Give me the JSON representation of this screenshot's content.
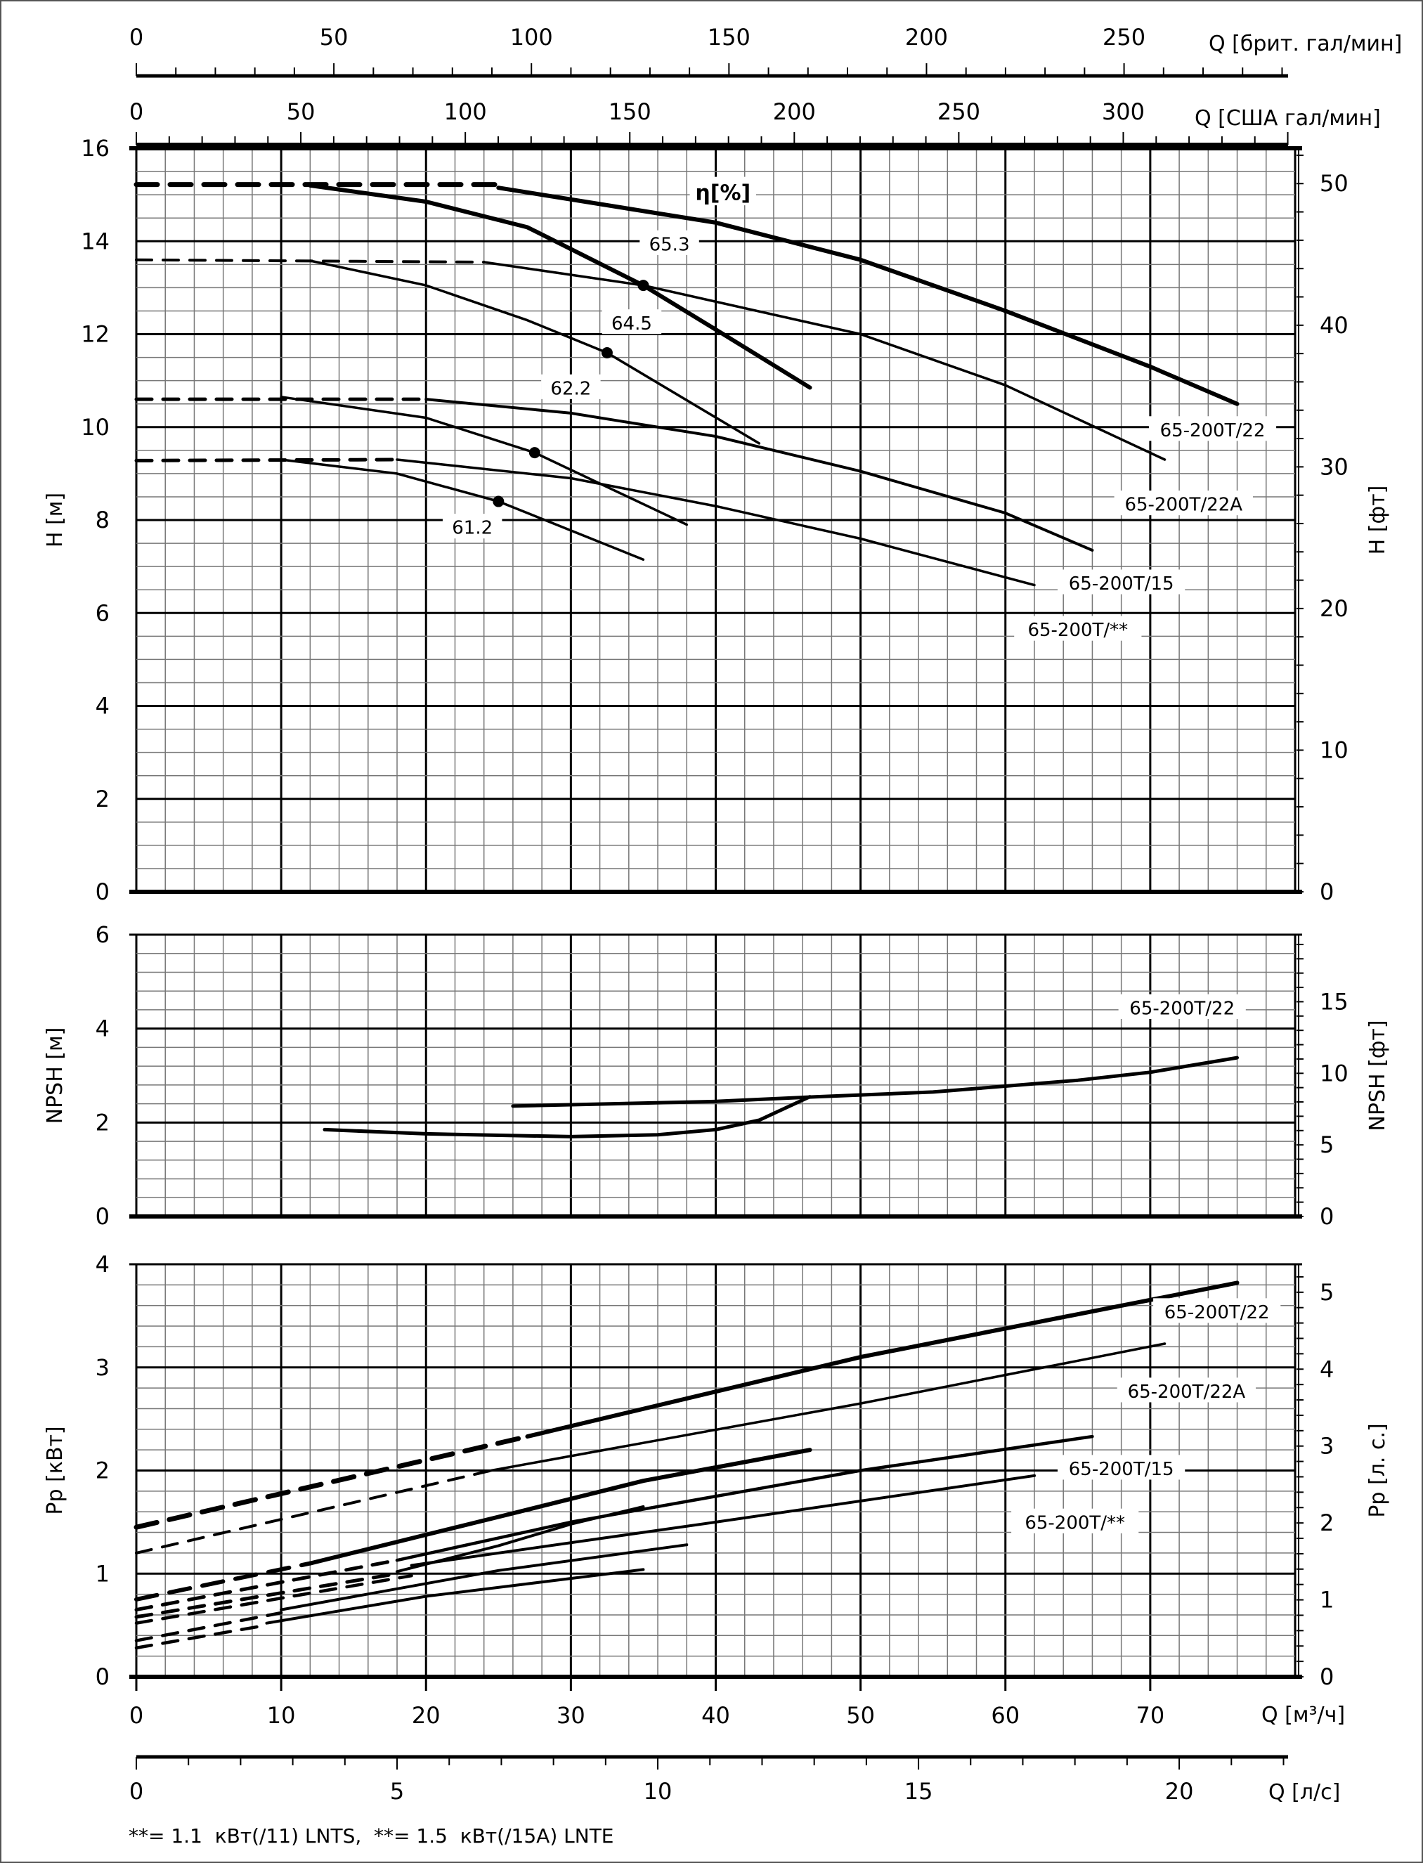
{
  "chart_data": {
    "type": "line",
    "x_range": [
      0,
      80
    ],
    "xlabel": "Q [м³/ч]",
    "x_ticks": [
      0,
      10,
      20,
      30,
      40,
      50,
      60,
      70
    ],
    "secondary_x_axes": [
      {
        "label": "Q [брит. гал/мин]",
        "factor": 3.6662,
        "ticks": [
          0,
          50,
          100,
          150,
          200,
          250
        ],
        "position": "top"
      },
      {
        "label": "Q [США гал/мин]",
        "factor": 4.4029,
        "ticks": [
          0,
          50,
          100,
          150,
          200,
          250,
          300
        ],
        "position": "top"
      },
      {
        "label": "Q [л/с]",
        "factor": 0.27778,
        "ticks": [
          0,
          5,
          10,
          15,
          20
        ],
        "position": "bottom"
      }
    ],
    "panels": [
      {
        "id": "H",
        "ylabel": "H [м]",
        "ylim": [
          0,
          16
        ],
        "y_ticks": [
          0,
          2,
          4,
          6,
          8,
          10,
          12,
          14,
          16
        ],
        "y2label": "H [фт]",
        "y2factor": 3.2808,
        "y2_ticks": [
          0,
          10,
          20,
          30,
          40,
          50
        ],
        "series": [
          {
            "name": "65-200T/22 dashed",
            "width": 7,
            "dashed": true,
            "points": [
              [
                0,
                15.22
              ],
              [
                25,
                15.22
              ]
            ]
          },
          {
            "name": "65-200T/22",
            "width": 6,
            "points": [
              [
                25,
                15.15
              ],
              [
                40,
                14.4
              ],
              [
                50,
                13.6
              ],
              [
                60,
                12.5
              ],
              [
                70,
                11.3
              ],
              [
                76,
                10.5
              ]
            ]
          },
          {
            "name": "η 65-200T/22",
            "width": 6,
            "points": [
              [
                12,
                15.2
              ],
              [
                20,
                14.85
              ],
              [
                27,
                14.3
              ],
              [
                35,
                13.05
              ],
              [
                40,
                12.1
              ],
              [
                46.5,
                10.85
              ]
            ]
          },
          {
            "name": "65-200T/22A dashed",
            "width": 4,
            "dashed": true,
            "points": [
              [
                0,
                13.6
              ],
              [
                24,
                13.55
              ]
            ]
          },
          {
            "name": "65-200T/22A",
            "width": 3.5,
            "points": [
              [
                24,
                13.55
              ],
              [
                35,
                13.05
              ],
              [
                50,
                12.0
              ],
              [
                60,
                10.9
              ],
              [
                71,
                9.3
              ]
            ]
          },
          {
            "name": "η 65-200T/22A",
            "width": 3.5,
            "points": [
              [
                12,
                13.58
              ],
              [
                20,
                13.05
              ],
              [
                27,
                12.3
              ],
              [
                32.5,
                11.6
              ],
              [
                43,
                9.65
              ]
            ]
          },
          {
            "name": "65-200T/15 dashed",
            "width": 5,
            "dashed": true,
            "points": [
              [
                0,
                10.6
              ],
              [
                20,
                10.6
              ]
            ]
          },
          {
            "name": "65-200T/15",
            "width": 4,
            "points": [
              [
                20,
                10.6
              ],
              [
                30,
                10.3
              ],
              [
                40,
                9.8
              ],
              [
                50,
                9.05
              ],
              [
                60,
                8.15
              ],
              [
                66,
                7.35
              ]
            ]
          },
          {
            "name": "η 65-200T/15",
            "width": 3.5,
            "points": [
              [
                10,
                10.65
              ],
              [
                20,
                10.2
              ],
              [
                27.5,
                9.45
              ],
              [
                38,
                7.9
              ]
            ]
          },
          {
            "name": "65-200T/** dashed",
            "width": 5,
            "dashed": true,
            "points": [
              [
                0,
                9.28
              ],
              [
                18,
                9.3
              ]
            ]
          },
          {
            "name": "65-200T/**",
            "width": 3.5,
            "points": [
              [
                18,
                9.3
              ],
              [
                30,
                8.9
              ],
              [
                40,
                8.3
              ],
              [
                50,
                7.6
              ],
              [
                62,
                6.6
              ]
            ]
          },
          {
            "name": "η 65-200T/**",
            "width": 3.5,
            "points": [
              [
                10,
                9.3
              ],
              [
                18,
                9.0
              ],
              [
                25,
                8.4
              ],
              [
                35,
                7.15
              ]
            ]
          }
        ],
        "markers": [
          [
            35,
            13.05
          ],
          [
            32.5,
            11.6
          ],
          [
            27.5,
            9.45
          ],
          [
            25,
            8.4
          ]
        ],
        "annotations": [
          {
            "text": "η[%]",
            "x": 40.5,
            "y": 15.0,
            "bold": true
          },
          {
            "text": "65.3",
            "x": 36.8,
            "y": 13.9
          },
          {
            "text": "64.5",
            "x": 34.2,
            "y": 12.2
          },
          {
            "text": "62.2",
            "x": 30.0,
            "y": 10.8
          },
          {
            "text": "61.2",
            "x": 23.2,
            "y": 7.8
          },
          {
            "text": "65-200T/22",
            "x": 74.3,
            "y": 9.9
          },
          {
            "text": "65-200T/22A",
            "x": 72.3,
            "y": 8.3
          },
          {
            "text": "65-200T/15",
            "x": 68.0,
            "y": 6.6
          },
          {
            "text": "65-200T/**",
            "x": 65.0,
            "y": 5.6
          }
        ]
      },
      {
        "id": "NPSH",
        "ylabel": "NPSH [м]",
        "ylim": [
          0,
          6
        ],
        "y_ticks": [
          0,
          2,
          4,
          6
        ],
        "y2label": "NPSH [фт]",
        "y2factor": 3.2808,
        "y2_ticks": [
          0,
          5,
          10,
          15
        ],
        "series": [
          {
            "name": "NPSH low",
            "width": 5,
            "points": [
              [
                13,
                1.85
              ],
              [
                20,
                1.76
              ],
              [
                30,
                1.7
              ],
              [
                36,
                1.74
              ],
              [
                40,
                1.85
              ],
              [
                43,
                2.05
              ],
              [
                46.5,
                2.55
              ]
            ]
          },
          {
            "name": "NPSH 65-200T/22",
            "width": 5,
            "points": [
              [
                26,
                2.35
              ],
              [
                40,
                2.45
              ],
              [
                47,
                2.55
              ],
              [
                55,
                2.65
              ],
              [
                65,
                2.9
              ],
              [
                70,
                3.07
              ],
              [
                76,
                3.38
              ]
            ]
          }
        ],
        "markers": [],
        "annotations": [
          {
            "text": "65-200T/22",
            "x": 72.2,
            "y": 4.4
          }
        ]
      },
      {
        "id": "Pp",
        "ylabel": "Pp [кВт]",
        "ylim": [
          0,
          4
        ],
        "y_ticks": [
          0,
          1,
          2,
          3,
          4
        ],
        "y2label": "Pp [л. с.]",
        "y2factor": 1.341,
        "y2_ticks": [
          0,
          1,
          2,
          3,
          4,
          5
        ],
        "series": [
          {
            "name": "Pp 65-200T/22 dashed",
            "width": 7,
            "dashed": true,
            "points": [
              [
                0,
                1.45
              ],
              [
                27,
                2.33
              ]
            ]
          },
          {
            "name": "Pp 65-200T/22",
            "width": 6,
            "points": [
              [
                27,
                2.33
              ],
              [
                50,
                3.1
              ],
              [
                76,
                3.82
              ]
            ]
          },
          {
            "name": "Pp 65-200T/22A dashed",
            "width": 4,
            "dashed": true,
            "points": [
              [
                0,
                1.2
              ],
              [
                24.5,
                2.0
              ]
            ]
          },
          {
            "name": "Pp 65-200T/22A",
            "width": 3.5,
            "points": [
              [
                24.5,
                2.0
              ],
              [
                50,
                2.65
              ],
              [
                71,
                3.23
              ]
            ]
          },
          {
            "name": "Pp low thick dashed",
            "width": 6,
            "dashed": true,
            "points": [
              [
                0,
                0.75
              ],
              [
                12,
                1.1
              ]
            ]
          },
          {
            "name": "Pp low thick",
            "width": 6,
            "points": [
              [
                12,
                1.1
              ],
              [
                25,
                1.55
              ],
              [
                35,
                1.9
              ],
              [
                46.5,
                2.2
              ]
            ]
          },
          {
            "name": "Pp 65-200T/15 dashed",
            "width": 5,
            "dashed": true,
            "points": [
              [
                0,
                0.65
              ],
              [
                18,
                1.13
              ]
            ]
          },
          {
            "name": "Pp 65-200T/15",
            "width": 4.5,
            "points": [
              [
                18,
                1.13
              ],
              [
                30,
                1.5
              ],
              [
                40,
                1.75
              ],
              [
                50,
                2.0
              ],
              [
                66,
                2.33
              ]
            ]
          },
          {
            "name": "Pp mid dashed",
            "width": 5,
            "dashed": true,
            "points": [
              [
                0,
                0.58
              ],
              [
                18,
                1.0
              ]
            ]
          },
          {
            "name": "Pp mid",
            "width": 4,
            "points": [
              [
                18,
                1.02
              ],
              [
                25,
                1.27
              ],
              [
                30,
                1.48
              ],
              [
                35,
                1.65
              ]
            ]
          },
          {
            "name": "Pp 65-200T/** dashed",
            "width": 4.5,
            "dashed": true,
            "points": [
              [
                0,
                0.52
              ],
              [
                19,
                0.98
              ]
            ]
          },
          {
            "name": "Pp 65-200T/**",
            "width": 4,
            "points": [
              [
                19,
                1.08
              ],
              [
                40,
                1.5
              ],
              [
                62,
                1.95
              ]
            ]
          },
          {
            "name": "Pp small dashed",
            "width": 4.5,
            "dashed": true,
            "points": [
              [
                0,
                0.35
              ],
              [
                10,
                0.62
              ]
            ]
          },
          {
            "name": "Pp small",
            "width": 4,
            "points": [
              [
                10,
                0.65
              ],
              [
                25,
                1.03
              ],
              [
                38,
                1.28
              ]
            ]
          },
          {
            "name": "Pp smallest dashed",
            "width": 4.5,
            "dashed": true,
            "points": [
              [
                0,
                0.28
              ],
              [
                9,
                0.5
              ]
            ]
          },
          {
            "name": "Pp smallest",
            "width": 4,
            "points": [
              [
                9,
                0.52
              ],
              [
                20,
                0.78
              ],
              [
                35,
                1.04
              ]
            ]
          }
        ],
        "markers": [],
        "annotations": [
          {
            "text": "65-200T/22",
            "x": 74.6,
            "y": 3.52
          },
          {
            "text": "65-200T/22A",
            "x": 72.5,
            "y": 2.75
          },
          {
            "text": "65-200T/15",
            "x": 68.0,
            "y": 2.0
          },
          {
            "text": "65-200T/**",
            "x": 64.8,
            "y": 1.48
          }
        ]
      }
    ]
  },
  "footnote": "**= 1.1  кВт(/11) LNTS,  **= 1.5  кВт(/15A) LNTE"
}
